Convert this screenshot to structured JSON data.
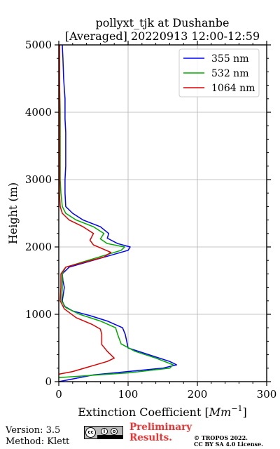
{
  "chart_data": {
    "type": "line",
    "title": "pollyxt_tjk at Dushanbe",
    "subtitle": "[Averaged] 20220913 12:00-12:59",
    "xlabel": "Extinction Coefficient [Mm⁻¹]",
    "xlabel_text": "Extinction Coefficient [",
    "xlabel_unit": "Mm",
    "xlabel_exp": "−1",
    "xlabel_close": "]",
    "ylabel": "Height (m)",
    "xlim": [
      0,
      300
    ],
    "ylim": [
      0,
      5000
    ],
    "xticks": [
      0,
      100,
      200,
      300
    ],
    "yticks": [
      0,
      1000,
      2000,
      3000,
      4000,
      5000
    ],
    "grid": true,
    "legend_position": "top-right",
    "series": [
      {
        "name": "355 nm",
        "color": "#0000ff",
        "points": [
          [
            0,
            0
          ],
          [
            50,
            100
          ],
          [
            150,
            200
          ],
          [
            170,
            250
          ],
          [
            160,
            300
          ],
          [
            130,
            400
          ],
          [
            100,
            500
          ],
          [
            96,
            700
          ],
          [
            92,
            800
          ],
          [
            70,
            900
          ],
          [
            45,
            980
          ],
          [
            20,
            1050
          ],
          [
            8,
            1120
          ],
          [
            5,
            1200
          ],
          [
            8,
            1400
          ],
          [
            6,
            1500
          ],
          [
            5,
            1600
          ],
          [
            15,
            1700
          ],
          [
            100,
            1950
          ],
          [
            103,
            2000
          ],
          [
            85,
            2050
          ],
          [
            70,
            2130
          ],
          [
            72,
            2200
          ],
          [
            60,
            2300
          ],
          [
            35,
            2400
          ],
          [
            20,
            2500
          ],
          [
            10,
            2600
          ],
          [
            9,
            2800
          ],
          [
            9,
            3000
          ],
          [
            10,
            3200
          ],
          [
            10,
            3500
          ],
          [
            10,
            3700
          ],
          [
            9,
            3900
          ],
          [
            9,
            4200
          ],
          [
            7,
            4500
          ],
          [
            6,
            4800
          ],
          [
            5,
            5000
          ]
        ]
      },
      {
        "name": "532 nm",
        "color": "#00aa00",
        "points": [
          [
            0,
            60
          ],
          [
            100,
            130
          ],
          [
            160,
            200
          ],
          [
            165,
            250
          ],
          [
            140,
            350
          ],
          [
            110,
            450
          ],
          [
            90,
            560
          ],
          [
            85,
            700
          ],
          [
            82,
            800
          ],
          [
            60,
            900
          ],
          [
            30,
            1000
          ],
          [
            10,
            1100
          ],
          [
            4,
            1200
          ],
          [
            5,
            1400
          ],
          [
            5,
            1600
          ],
          [
            10,
            1700
          ],
          [
            90,
            1950
          ],
          [
            95,
            2000
          ],
          [
            70,
            2050
          ],
          [
            60,
            2120
          ],
          [
            65,
            2200
          ],
          [
            50,
            2300
          ],
          [
            25,
            2400
          ],
          [
            10,
            2500
          ],
          [
            5,
            2600
          ],
          [
            3,
            2800
          ],
          [
            2,
            3000
          ],
          [
            2,
            3500
          ],
          [
            2,
            4000
          ],
          [
            1,
            4500
          ],
          [
            1,
            5000
          ]
        ]
      },
      {
        "name": "1064 nm",
        "color": "#dd0000",
        "points": [
          [
            0,
            110
          ],
          [
            20,
            150
          ],
          [
            70,
            300
          ],
          [
            80,
            350
          ],
          [
            70,
            450
          ],
          [
            62,
            550
          ],
          [
            62,
            700
          ],
          [
            60,
            780
          ],
          [
            48,
            850
          ],
          [
            25,
            950
          ],
          [
            8,
            1080
          ],
          [
            2,
            1200
          ],
          [
            3,
            1400
          ],
          [
            3,
            1600
          ],
          [
            10,
            1700
          ],
          [
            65,
            1850
          ],
          [
            75,
            1920
          ],
          [
            50,
            2030
          ],
          [
            45,
            2100
          ],
          [
            50,
            2200
          ],
          [
            35,
            2300
          ],
          [
            15,
            2400
          ],
          [
            5,
            2500
          ],
          [
            2,
            2600
          ],
          [
            1,
            2800
          ],
          [
            1,
            3000
          ],
          [
            1,
            3500
          ],
          [
            1,
            4000
          ],
          [
            1,
            4500
          ],
          [
            1,
            5000
          ]
        ]
      }
    ]
  },
  "footer": {
    "version": "Version: 3.5",
    "method": "Method: Klett",
    "preliminary_line1": "Preliminary",
    "preliminary_line2": "Results.",
    "copyright_line1": "© TROPOS 2022.",
    "copyright_line2": "CC BY SA 4.0 License."
  }
}
